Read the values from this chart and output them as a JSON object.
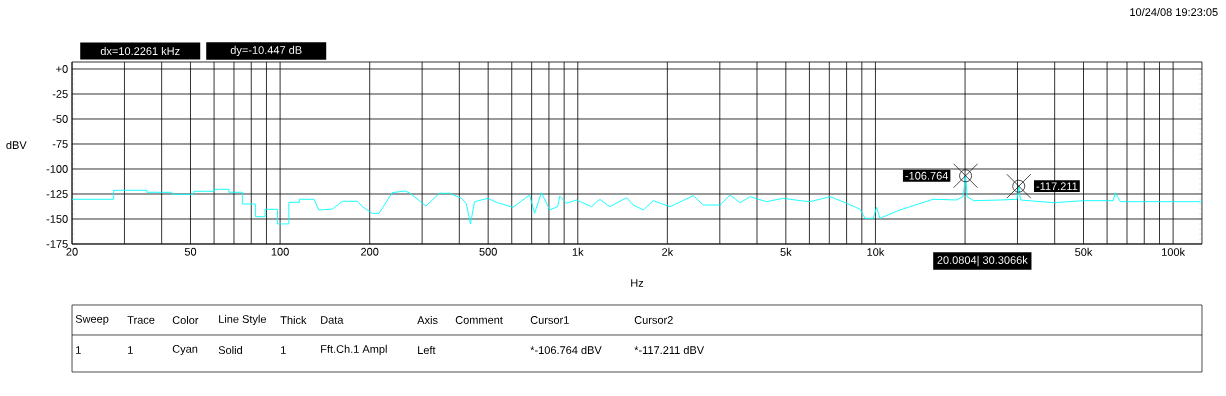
{
  "chart_data": {
    "type": "line",
    "xlabel": "Hz",
    "ylabel": "dBV",
    "x": [
      20,
      27.6,
      27.6,
      35.7,
      35.7,
      43.3,
      43.3,
      51.3,
      51.3,
      60,
      60,
      67.3,
      67.3,
      74.7,
      74.7,
      82.6,
      82.6,
      89,
      89,
      98,
      98,
      107,
      107,
      116,
      116,
      130,
      135,
      150,
      162,
      182,
      189,
      204,
      215,
      238,
      262,
      272,
      309,
      343,
      371,
      406,
      422,
      436,
      450,
      499,
      532,
      606,
      689,
      716,
      755,
      805,
      856,
      870,
      916,
      990,
      1112,
      1186,
      1281,
      1459,
      1535,
      1660,
      1793,
      2040,
      2445,
      2640,
      3010,
      3250,
      3510,
      3790,
      4310,
      4910,
      5590,
      6030,
      7050,
      8010,
      8880,
      9220,
      9830,
      10090,
      10350,
      12080,
      15620,
      18710,
      19700,
      20080.4,
      20330,
      21390,
      26300,
      29900,
      30306.6,
      30700,
      39650,
      50000,
      63000,
      63900,
      66500,
      95400,
      125000
    ],
    "values": [
      -130.3,
      -130.3,
      -121.3,
      -121.3,
      -123.3,
      -123.3,
      -125.3,
      -125.3,
      -122.3,
      -122.3,
      -120.3,
      -120.3,
      -123.3,
      -123.3,
      -135,
      -135,
      -147.7,
      -147.7,
      -140.3,
      -140.3,
      -155,
      -155,
      -133.3,
      -133.3,
      -130.3,
      -130.3,
      -141,
      -140,
      -132.3,
      -132.3,
      -137.7,
      -144.3,
      -144.3,
      -123.7,
      -122,
      -123.7,
      -137,
      -124.3,
      -124.3,
      -129.3,
      -134.3,
      -155,
      -132.7,
      -129.3,
      -133.3,
      -138.3,
      -126,
      -144.3,
      -123.7,
      -141,
      -137.7,
      -127,
      -134.3,
      -131,
      -137.7,
      -130.3,
      -137.7,
      -128.7,
      -136,
      -141,
      -131.7,
      -137.7,
      -126.7,
      -136,
      -136,
      -126,
      -133.7,
      -127.7,
      -132.7,
      -129.3,
      -131.7,
      -132.7,
      -127.7,
      -134.3,
      -140.3,
      -149.3,
      -149.3,
      -138.3,
      -149.3,
      -141,
      -130.3,
      -131,
      -127.7,
      -106.764,
      -127.7,
      -131.7,
      -131,
      -130.3,
      -117.211,
      -131,
      -133.7,
      -131.7,
      -131.7,
      -123.7,
      -132.7,
      -132.7,
      -132.7
    ],
    "color": "#00ffff",
    "line_style": "solid",
    "marker": "none",
    "log": "x",
    "grid": true,
    "xlim": [
      20,
      125000
    ],
    "ylim": [
      -175,
      7
    ],
    "xticks": [
      20,
      {
        "value": 30,
        "label": null
      },
      {
        "value": 40,
        "label": null
      },
      50,
      {
        "value": 60,
        "label": null
      },
      {
        "value": 70,
        "label": null
      },
      {
        "value": 80,
        "label": null
      },
      {
        "value": 90,
        "label": null
      },
      100,
      200,
      {
        "value": 300,
        "label": null
      },
      {
        "value": 400,
        "label": null
      },
      500,
      {
        "value": 600,
        "label": null
      },
      {
        "value": 700,
        "label": null
      },
      {
        "value": 800,
        "label": null
      },
      {
        "value": 900,
        "label": null
      },
      {
        "value": 1000,
        "label": "1k"
      },
      {
        "value": 2000,
        "label": "2k"
      },
      {
        "value": 3000,
        "label": null
      },
      {
        "value": 4000,
        "label": null
      },
      {
        "value": 5000,
        "label": "5k"
      },
      {
        "value": 6000,
        "label": null
      },
      {
        "value": 7000,
        "label": null
      },
      {
        "value": 8000,
        "label": null
      },
      {
        "value": 9000,
        "label": null
      },
      {
        "value": 10000,
        "label": "10k"
      },
      {
        "value": 20000,
        "label": null
      },
      {
        "value": 30000,
        "label": null
      },
      {
        "value": 40000,
        "label": null
      },
      {
        "value": 50000,
        "label": "50k"
      },
      {
        "value": 60000,
        "label": null
      },
      {
        "value": 70000,
        "label": null
      },
      {
        "value": 80000,
        "label": null
      },
      {
        "value": 90000,
        "label": null
      },
      {
        "value": 100000,
        "label": "100k"
      }
    ],
    "yticks": [
      {
        "value": 0,
        "label": "+0"
      },
      -25,
      -50,
      -75,
      -100,
      -125,
      -150,
      -175
    ],
    "annotations": [
      "dx=10.2261 kHz",
      "dy=-10.447 dB",
      "10/24/08 19:23:05",
      {
        "text": "-106.764",
        "x": 20080.4,
        "y": -106.764
      },
      {
        "text": "-117.211",
        "x": 30306.6,
        "y": -117.211
      },
      "20.0804| 30.3066k",
      "Sweep",
      "Trace",
      "Color",
      "Line Style",
      "Thick",
      "Data",
      "Axis",
      "Comment",
      "Cursor1",
      "Cursor2",
      "1",
      "1",
      "Cyan",
      "Solid",
      "1",
      "Fft.Ch.1 Ampl",
      "Left",
      "*-106.764 dBV",
      "*-117.211 dBV"
    ]
  }
}
